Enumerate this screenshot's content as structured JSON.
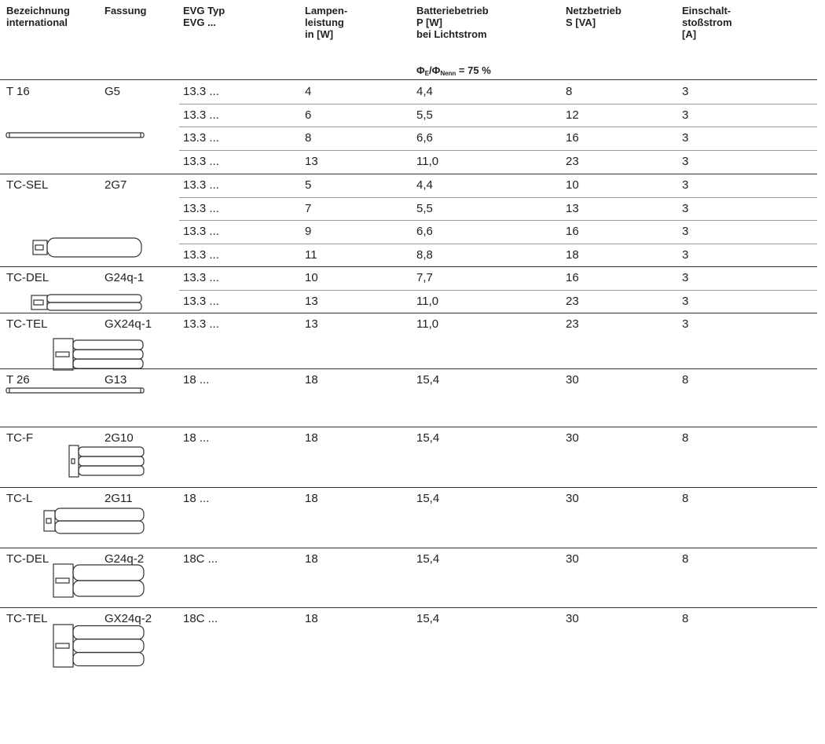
{
  "table": {
    "header": [
      [
        "Bezeichnung",
        "international"
      ],
      [
        "Fassung"
      ],
      [
        "EVG Typ",
        "EVG ..."
      ],
      [
        "Lampen-",
        "leistung",
        "in [W]"
      ],
      [
        "Batteriebetrieb",
        "P [W]",
        "bei Lichtstrom"
      ],
      [
        "Netzbetrieb",
        "S [VA]"
      ],
      [
        "Einschalt-",
        "stoßstrom",
        "[A]"
      ]
    ],
    "formula": {
      "phi": "Φ",
      "sub_e": "E",
      "slash_phi": "/Φ",
      "sub_nenn": "Nenn",
      "rest": " = 75 %"
    },
    "groups": [
      {
        "name": "T 16",
        "socket": "G5",
        "rows": [
          [
            "13.3 ...",
            "4",
            "4,4",
            "8",
            "3"
          ],
          [
            "13.3 ...",
            "6",
            "5,5",
            "12",
            "3"
          ],
          [
            "13.3 ...",
            "8",
            "6,6",
            "16",
            "3"
          ],
          [
            "13.3 ...",
            "13",
            "11,0",
            "23",
            "3"
          ]
        ]
      },
      {
        "name": "TC-SEL",
        "socket": "2G7",
        "rows": [
          [
            "13.3 ...",
            "5",
            "4,4",
            "10",
            "3"
          ],
          [
            "13.3 ...",
            "7",
            "5,5",
            "13",
            "3"
          ],
          [
            "13.3 ...",
            "9",
            "6,6",
            "16",
            "3"
          ],
          [
            "13.3 ...",
            "11",
            "8,8",
            "18",
            "3"
          ]
        ]
      },
      {
        "name": "TC-DEL",
        "socket": "G24q-1",
        "rows": [
          [
            "13.3 ...",
            "10",
            "7,7",
            "16",
            "3"
          ],
          [
            "13.3 ...",
            "13",
            "11,0",
            "23",
            "3"
          ]
        ]
      },
      {
        "name": "TC-TEL",
        "socket": "GX24q-1",
        "rows": [
          [
            "13.3 ...",
            "13",
            "11,0",
            "23",
            "3"
          ]
        ]
      },
      {
        "name": "T 26",
        "socket": "G13",
        "rows": [
          [
            "18 ...",
            "18",
            "15,4",
            "30",
            "8"
          ]
        ]
      },
      {
        "name": "TC-F",
        "socket": "2G10",
        "rows": [
          [
            "18 ...",
            "18",
            "15,4",
            "30",
            "8"
          ]
        ]
      },
      {
        "name": "TC-L",
        "socket": "2G11",
        "rows": [
          [
            "18 ...",
            "18",
            "15,4",
            "30",
            "8"
          ]
        ]
      },
      {
        "name": "TC-DEL",
        "socket": "G24q-2",
        "rows": [
          [
            "18C ...",
            "18",
            "15,4",
            "30",
            "8"
          ]
        ]
      },
      {
        "name": "TC-TEL",
        "socket": "GX24q-2",
        "rows": [
          [
            "18C ...",
            "18",
            "15,4",
            "30",
            "8"
          ]
        ]
      }
    ]
  }
}
